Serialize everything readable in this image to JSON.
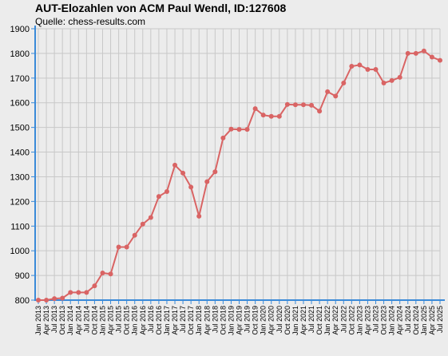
{
  "chart_data": {
    "type": "line",
    "title": "AUT-Elozahlen von ACM Paul Wendl, ID:127608",
    "subtitle": "Quelle: chess-results.com",
    "xlabel": "",
    "ylabel": "",
    "ylim": [
      800,
      1900
    ],
    "yticks": [
      800,
      900,
      1000,
      1100,
      1200,
      1300,
      1400,
      1500,
      1600,
      1700,
      1800,
      1900
    ],
    "grid": true,
    "legend": "none",
    "colors": {
      "line": "#d96464",
      "axis": "#3a8ad8",
      "grid": "#c8c8c8",
      "background": "#ececec"
    },
    "x": [
      "Jan 2013",
      "Apr 2013",
      "Jul 2013",
      "Oct 2013",
      "Jan 2014",
      "Apr 2014",
      "Jul 2014",
      "Oct 2014",
      "Jan 2015",
      "Apr 2015",
      "Jul 2015",
      "Oct 2015",
      "Jan 2016",
      "Apr 2016",
      "Jul 2016",
      "Oct 2016",
      "Jan 2017",
      "Apr 2017",
      "Jul 2017",
      "Oct 2017",
      "Jan 2018",
      "Apr 2018",
      "Jul 2018",
      "Oct 2018",
      "Jan 2019",
      "Apr 2019",
      "Jul 2019",
      "Oct 2019",
      "Jan 2020",
      "Apr 2020",
      "Jul 2020",
      "Oct 2020",
      "Jan 2021",
      "Apr 2021",
      "Jul 2021",
      "Oct 2021",
      "Jan 2022",
      "Apr 2022",
      "Jul 2022",
      "Oct 2022",
      "Jan 2023",
      "Apr 2023",
      "Jul 2023",
      "Oct 2023",
      "Jan 2024",
      "Apr 2024",
      "Jul 2024",
      "Oct 2024",
      "Jan 2025",
      "Apr 2025",
      "Jul 2025"
    ],
    "series": [
      {
        "values": [
          800,
          800,
          806,
          808,
          831,
          831,
          831,
          858,
          910,
          906,
          1015,
          1015,
          1063,
          1108,
          1135,
          1220,
          1240,
          1347,
          1315,
          1258,
          1140,
          1280,
          1320,
          1457,
          1493,
          1492,
          1492,
          1576,
          1550,
          1545,
          1545,
          1593,
          1592,
          1592,
          1590,
          1566,
          1645,
          1627,
          1680,
          1748,
          1753,
          1735,
          1735,
          1680,
          1690,
          1703,
          1800,
          1800,
          1810,
          1785,
          1772
        ]
      }
    ]
  }
}
